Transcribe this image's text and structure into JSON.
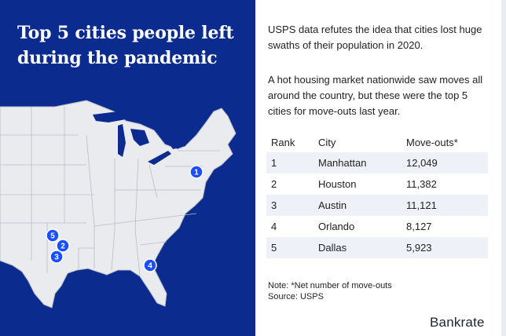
{
  "title": "Top 5 cities people left during the pandemic",
  "intro_1": "USPS data refutes the idea that cities lost huge swaths of their population in 2020.",
  "intro_2": "A hot housing market nationwide saw moves all around the country, but these were the top 5 cities for move-outs last year.",
  "table": {
    "headers": [
      "Rank",
      "City",
      "Move-outs*"
    ],
    "rows": [
      [
        "1",
        "Manhattan",
        "12,049"
      ],
      [
        "2",
        "Houston",
        "11,382"
      ],
      [
        "3",
        "Austin",
        "11,121"
      ],
      [
        "4",
        "Orlando",
        "8,127"
      ],
      [
        "5",
        "Dallas",
        "5,923"
      ]
    ]
  },
  "map_markers": [
    "1",
    "2",
    "3",
    "4",
    "5"
  ],
  "note": "Note: *Net number of move-outs",
  "source": "Source: USPS",
  "brand": "Bankrate",
  "colors": {
    "panel": "#0b2b8f",
    "map_fill": "#e9ebef",
    "map_border": "#b8bdc8",
    "marker": "#1a4fff",
    "row_shade": "#eef1f7"
  }
}
